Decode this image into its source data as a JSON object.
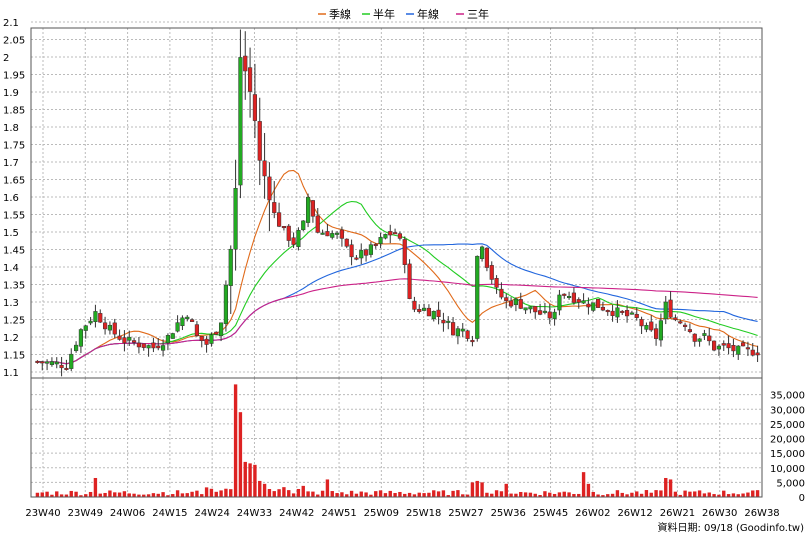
{
  "chart_data": {
    "type": "candlestick",
    "legend": [
      {
        "name": "季線",
        "color": "#e06a1a"
      },
      {
        "name": "半年",
        "color": "#22cc22"
      },
      {
        "name": "年線",
        "color": "#2266dd"
      },
      {
        "name": "三年",
        "color": "#cc2288"
      }
    ],
    "price_axis": {
      "range": [
        1.1,
        2.1
      ],
      "ticks": [
        "2.1",
        "2.05",
        "2",
        "1.95",
        "1.9",
        "1.85",
        "1.8",
        "1.75",
        "1.7",
        "1.65",
        "1.6",
        "1.55",
        "1.5",
        "1.45",
        "1.4",
        "1.35",
        "1.3",
        "1.25",
        "1.2",
        "1.15",
        "1.1"
      ]
    },
    "volume_axis": {
      "range": [
        0,
        40000
      ],
      "ticks": [
        "35,000",
        "30,000",
        "25,000",
        "20,000",
        "15,000",
        "10,000",
        "5,000",
        "0"
      ]
    },
    "x_labels": [
      "23W40",
      "23W49",
      "24W06",
      "24W15",
      "24W24",
      "24W33",
      "24W42",
      "24W51",
      "25W09",
      "25W18",
      "25W27",
      "25W36",
      "25W45",
      "26W02",
      "26W12",
      "26W21",
      "26W30",
      "26W38"
    ],
    "credit": "資料日期: 09/18  (Goodinfo.tw)",
    "up_color": "#22aa22",
    "down_color": "#dd2222",
    "volume_color": "#dd2222",
    "grid": true
  }
}
